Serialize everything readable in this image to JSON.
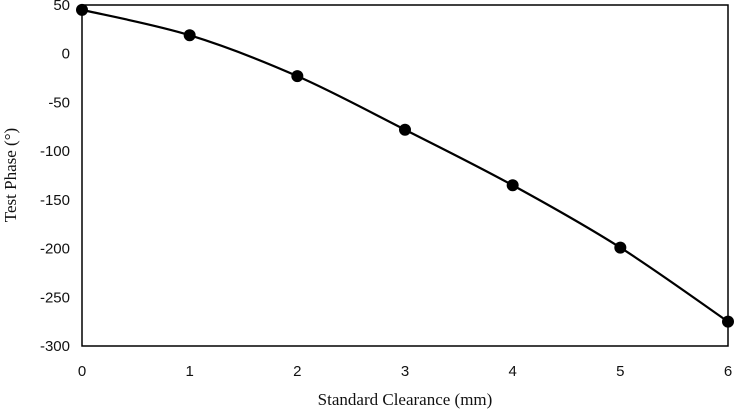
{
  "chart_data": {
    "type": "line",
    "title": "",
    "xlabel": "Standard Clearance (mm)",
    "ylabel": "Test Phase (°)",
    "xlim": [
      0,
      6
    ],
    "ylim": [
      -300,
      50
    ],
    "xticks": [
      0,
      1,
      2,
      3,
      4,
      5,
      6
    ],
    "yticks": [
      50,
      0,
      -50,
      -100,
      -150,
      -200,
      -250,
      -300
    ],
    "grid": false,
    "legend": "none",
    "smooth": true,
    "series": [
      {
        "x": [
          0,
          1,
          2,
          3,
          4,
          5,
          6
        ],
        "y": [
          45,
          19,
          -23,
          -78,
          -135,
          -199,
          -275
        ]
      }
    ],
    "colors": {
      "line": "#000000",
      "marker": "#000000",
      "frame": "#000000"
    }
  }
}
